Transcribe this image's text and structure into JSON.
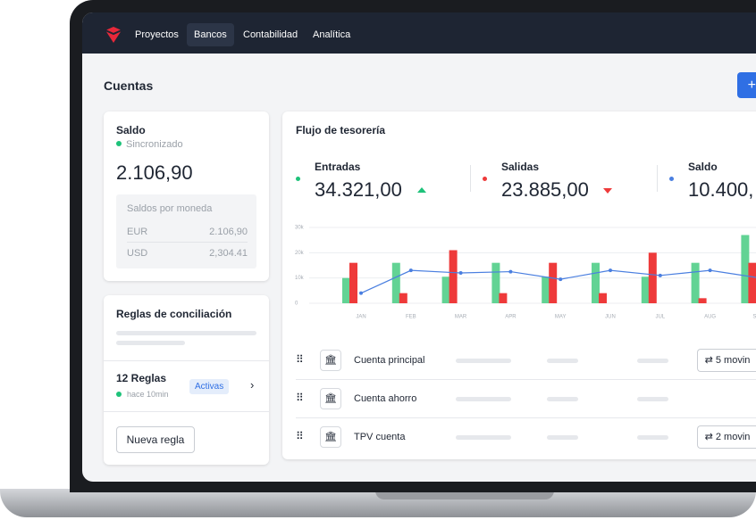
{
  "nav": [
    "Proyectos",
    "Bancos",
    "Contabilidad",
    "Analítica"
  ],
  "page_title": "Cuentas",
  "add_button": "+",
  "saldo_card": {
    "title": "Saldo",
    "status": "Sincronizado",
    "amount": "2.106,90",
    "currency_title": "Saldos por moneda",
    "rows": [
      [
        "EUR",
        "2.106,90"
      ],
      [
        "USD",
        "2,304.41"
      ]
    ]
  },
  "rules_card": {
    "title": "Reglas de conciliación",
    "count": "12 Reglas",
    "time": "hace 10min",
    "badge": "Activas",
    "button": "Nueva regla"
  },
  "flow_card": {
    "title": "Flujo de tesorería",
    "stats": [
      {
        "label": "Entradas",
        "value": "34.321,00"
      },
      {
        "label": "Salidas",
        "value": "23.885,00"
      },
      {
        "label": "Saldo",
        "value": "10.400,"
      }
    ],
    "accounts": [
      {
        "name": "Cuenta principal",
        "action": "5 movin"
      },
      {
        "name": "Cuenta ahorro"
      },
      {
        "name": "TPV cuenta",
        "action": "2 movin"
      }
    ]
  },
  "chart_data": {
    "type": "bar",
    "categories": [
      "JAN",
      "FEB",
      "MAR",
      "APR",
      "MAY",
      "JUN",
      "JUL",
      "AUG",
      "SE"
    ],
    "series": [
      {
        "name": "Entradas",
        "color": "#62d394",
        "values": [
          10000,
          16000,
          10500,
          16000,
          10500,
          16000,
          10500,
          16000,
          27000
        ]
      },
      {
        "name": "Salidas",
        "color": "#ee3a3a",
        "values": [
          16000,
          4000,
          21000,
          4000,
          16000,
          4000,
          20000,
          2000,
          16000
        ]
      },
      {
        "name": "Saldo",
        "type": "line",
        "color": "#4a7fe0",
        "values": [
          4000,
          13000,
          12000,
          12500,
          9500,
          13000,
          11000,
          13000,
          10000
        ]
      }
    ],
    "ylim": [
      0,
      30000
    ],
    "yticks": [
      0,
      {
        "value": 10000,
        "label": "10k"
      },
      {
        "value": 20000,
        "label": "20k"
      },
      {
        "value": 30000,
        "label": "30k"
      }
    ],
    "grid": true
  }
}
